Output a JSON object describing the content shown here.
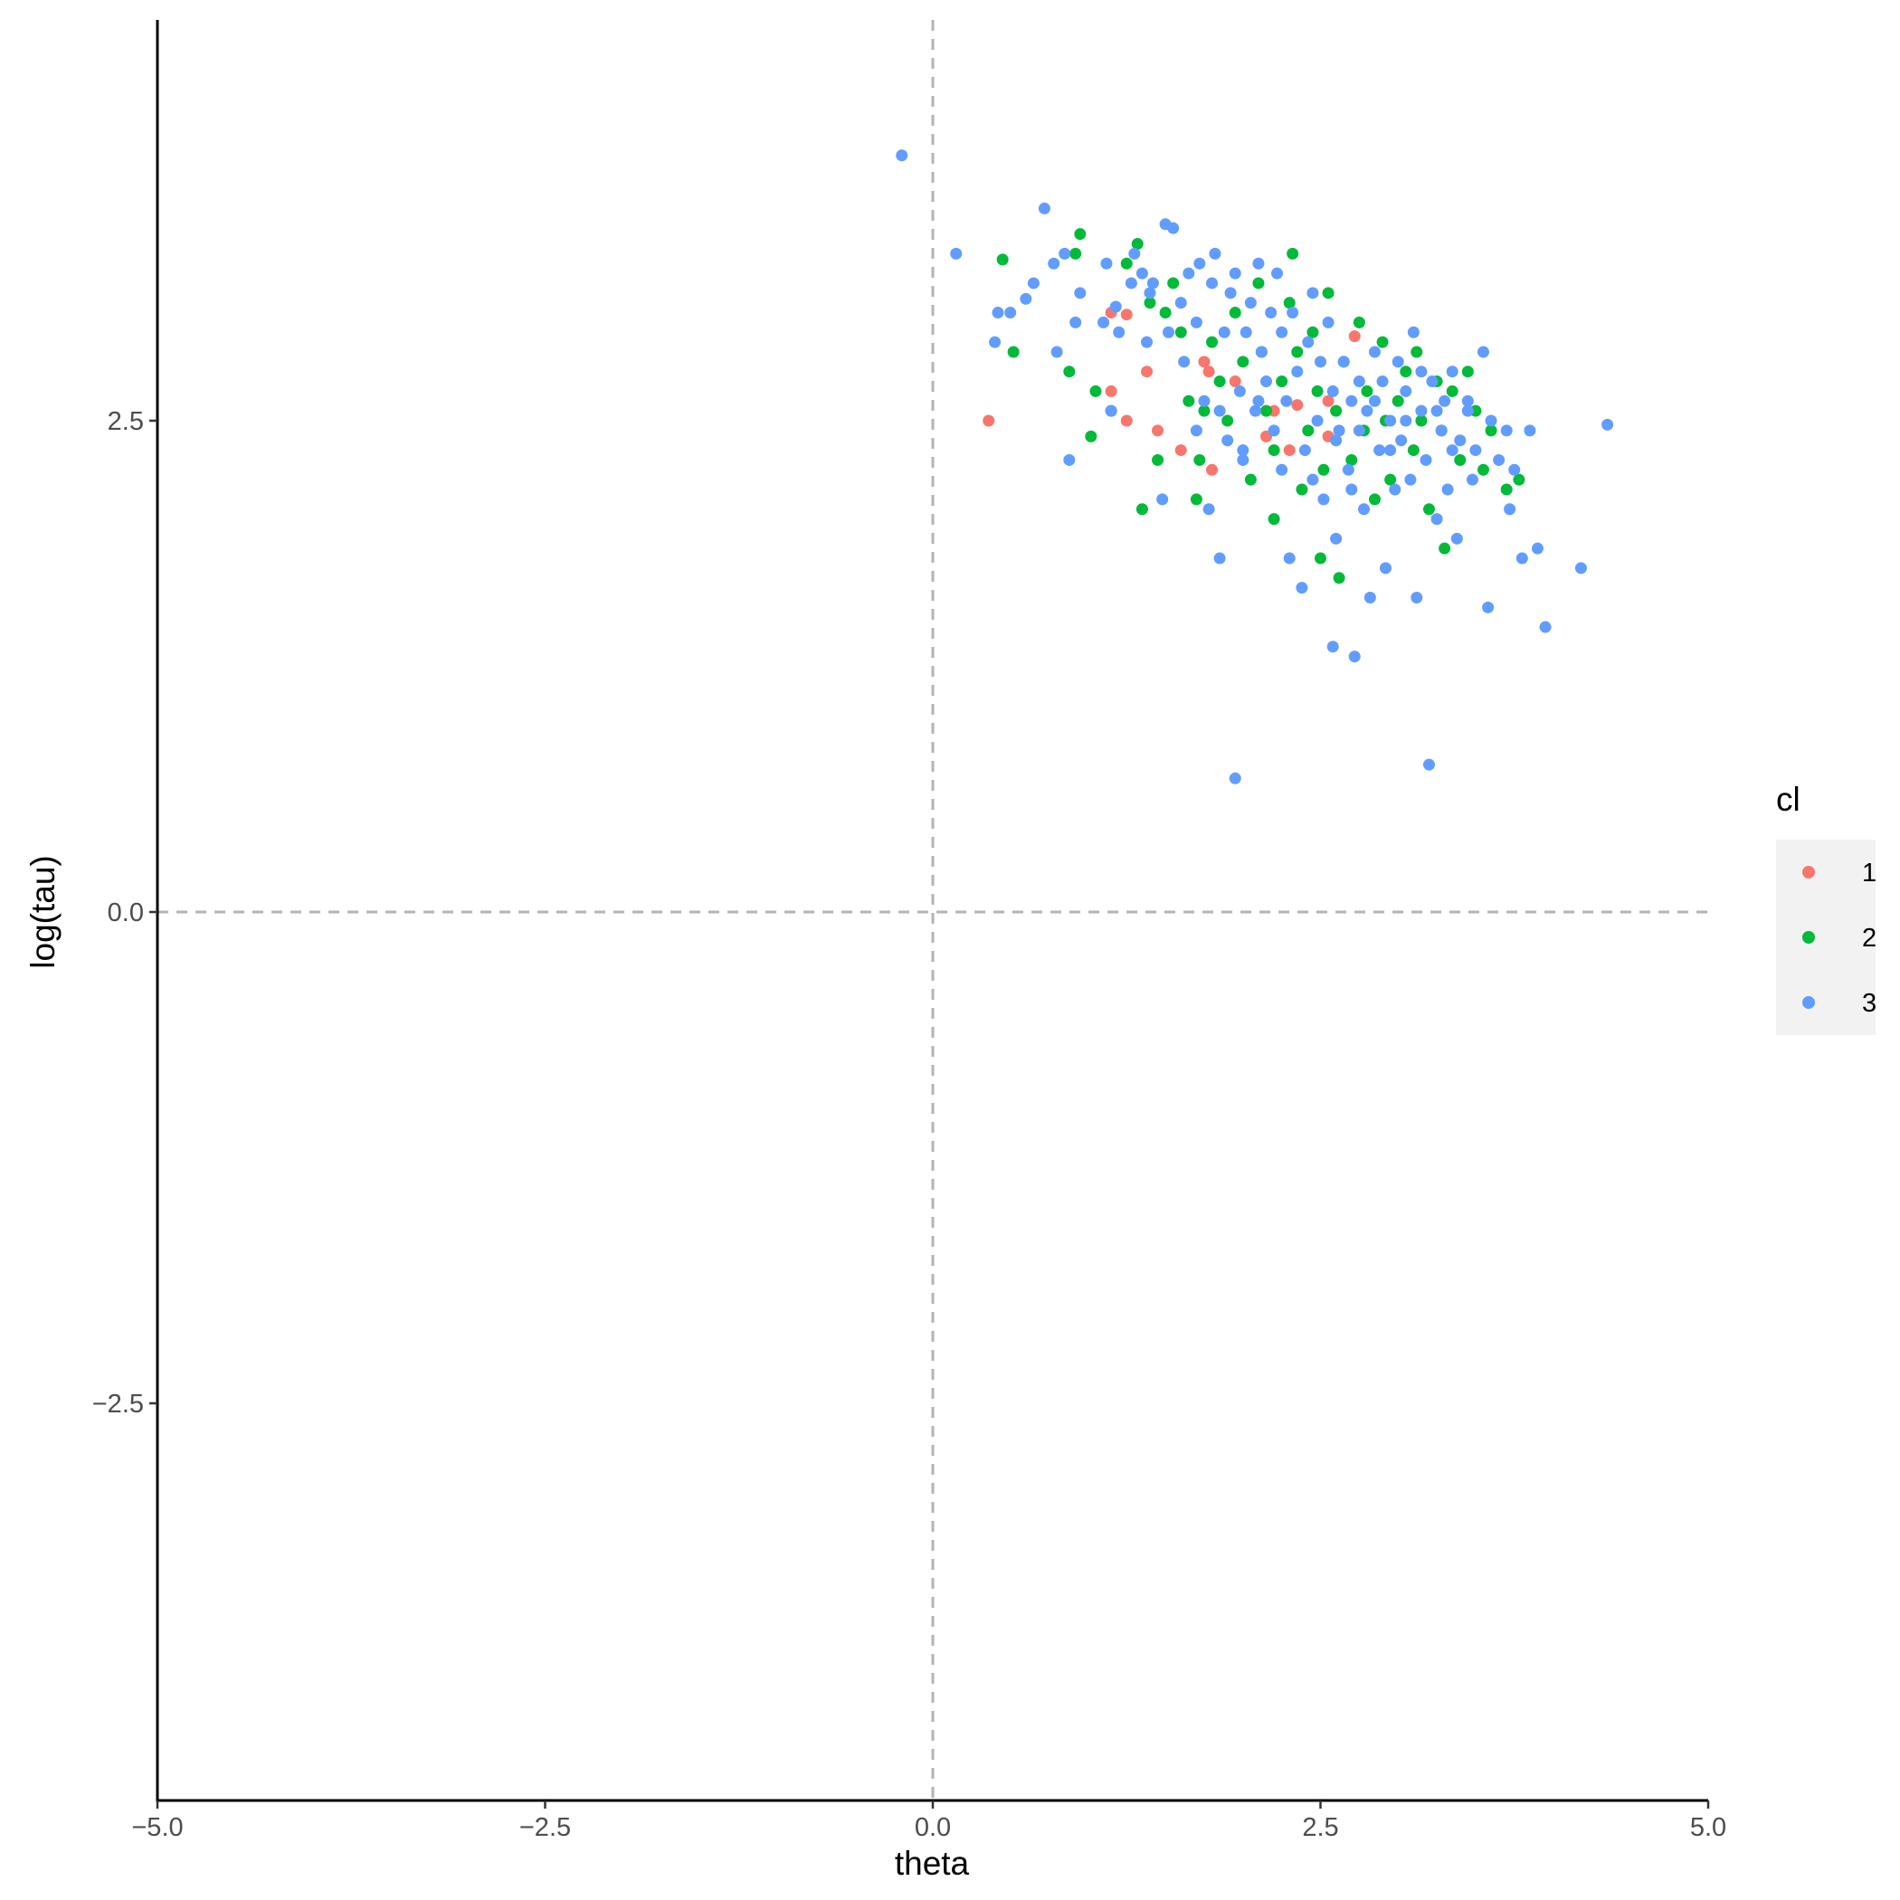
{
  "chart_data": {
    "type": "scatter",
    "title": "",
    "xlabel": "theta",
    "ylabel": "log(tau)",
    "xlim": [
      -5.0,
      5.0
    ],
    "ylim": [
      -4.5,
      4.5
    ],
    "xticks": [
      -5.0,
      -2.5,
      0.0,
      2.5,
      5.0
    ],
    "xtick_labels": [
      "−5.0",
      "−2.5",
      "0.0",
      "2.5",
      "5.0"
    ],
    "yticks": [
      -2.5,
      0.0,
      2.5
    ],
    "ytick_labels": [
      "−2.5",
      "0.0",
      "2.5"
    ],
    "reference_lines": {
      "x": 0,
      "y": 0,
      "style": "dashed",
      "color": "#b3b3b3"
    },
    "grid": false,
    "legend": {
      "title": "cl",
      "position": "right"
    },
    "series": [
      {
        "name": "1",
        "color": "#F8766D",
        "points": [
          [
            0.36,
            2.5
          ],
          [
            1.15,
            3.05
          ],
          [
            1.25,
            3.04
          ],
          [
            1.15,
            2.65
          ],
          [
            1.25,
            2.5
          ],
          [
            1.38,
            2.75
          ],
          [
            1.45,
            2.45
          ],
          [
            1.6,
            2.35
          ],
          [
            1.75,
            2.8
          ],
          [
            1.8,
            2.25
          ],
          [
            1.95,
            2.7
          ],
          [
            2.15,
            2.42
          ],
          [
            2.2,
            2.55
          ],
          [
            2.3,
            2.35
          ],
          [
            2.35,
            2.58
          ],
          [
            2.55,
            2.6
          ],
          [
            2.55,
            2.42
          ],
          [
            2.72,
            2.93
          ],
          [
            1.78,
            2.75
          ]
        ]
      },
      {
        "name": "2",
        "color": "#00BA38",
        "points": [
          [
            0.45,
            3.32
          ],
          [
            0.52,
            2.85
          ],
          [
            0.88,
            2.75
          ],
          [
            0.92,
            3.35
          ],
          [
            0.95,
            3.45
          ],
          [
            1.02,
            2.42
          ],
          [
            1.05,
            2.65
          ],
          [
            1.15,
            2.55
          ],
          [
            1.25,
            3.3
          ],
          [
            1.32,
            3.4
          ],
          [
            1.35,
            2.05
          ],
          [
            1.4,
            3.1
          ],
          [
            1.45,
            2.3
          ],
          [
            1.5,
            3.05
          ],
          [
            1.55,
            3.2
          ],
          [
            1.6,
            2.95
          ],
          [
            1.65,
            2.6
          ],
          [
            1.7,
            2.1
          ],
          [
            1.72,
            2.3
          ],
          [
            1.75,
            2.55
          ],
          [
            1.8,
            2.9
          ],
          [
            1.85,
            2.7
          ],
          [
            1.9,
            2.5
          ],
          [
            1.95,
            3.05
          ],
          [
            2.0,
            2.8
          ],
          [
            2.05,
            2.2
          ],
          [
            2.1,
            3.2
          ],
          [
            2.12,
            2.85
          ],
          [
            2.15,
            2.55
          ],
          [
            2.2,
            2.35
          ],
          [
            2.25,
            2.7
          ],
          [
            2.3,
            3.1
          ],
          [
            2.32,
            3.35
          ],
          [
            2.35,
            2.85
          ],
          [
            2.38,
            2.15
          ],
          [
            2.42,
            2.45
          ],
          [
            2.45,
            2.95
          ],
          [
            2.48,
            2.65
          ],
          [
            2.5,
            1.8
          ],
          [
            2.52,
            2.25
          ],
          [
            2.55,
            3.15
          ],
          [
            2.6,
            2.55
          ],
          [
            2.62,
            1.7
          ],
          [
            2.65,
            2.8
          ],
          [
            2.7,
            2.3
          ],
          [
            2.75,
            3.0
          ],
          [
            2.78,
            2.45
          ],
          [
            2.8,
            2.65
          ],
          [
            2.85,
            2.1
          ],
          [
            2.9,
            2.9
          ],
          [
            2.92,
            2.5
          ],
          [
            2.95,
            2.2
          ],
          [
            3.0,
            2.6
          ],
          [
            3.05,
            2.75
          ],
          [
            3.1,
            2.35
          ],
          [
            3.12,
            2.85
          ],
          [
            3.15,
            2.5
          ],
          [
            3.2,
            2.05
          ],
          [
            3.25,
            2.7
          ],
          [
            3.28,
            2.45
          ],
          [
            3.3,
            1.85
          ],
          [
            3.35,
            2.65
          ],
          [
            3.4,
            2.3
          ],
          [
            3.45,
            2.75
          ],
          [
            3.5,
            2.55
          ],
          [
            3.55,
            2.25
          ],
          [
            3.6,
            2.45
          ],
          [
            3.7,
            2.15
          ],
          [
            3.78,
            2.2
          ],
          [
            2.2,
            2.0
          ]
        ]
      },
      {
        "name": "3",
        "color": "#619CFF",
        "points": [
          [
            -0.2,
            3.85
          ],
          [
            0.15,
            3.35
          ],
          [
            0.4,
            2.9
          ],
          [
            0.42,
            3.05
          ],
          [
            0.5,
            3.05
          ],
          [
            0.6,
            3.12
          ],
          [
            0.65,
            3.2
          ],
          [
            0.72,
            3.58
          ],
          [
            0.78,
            3.3
          ],
          [
            0.8,
            2.85
          ],
          [
            0.85,
            3.35
          ],
          [
            0.88,
            2.3
          ],
          [
            0.92,
            3.0
          ],
          [
            0.95,
            3.15
          ],
          [
            1.1,
            3.0
          ],
          [
            1.12,
            3.3
          ],
          [
            1.15,
            2.55
          ],
          [
            1.18,
            3.08
          ],
          [
            1.2,
            2.95
          ],
          [
            1.28,
            3.2
          ],
          [
            1.3,
            3.35
          ],
          [
            1.35,
            3.25
          ],
          [
            1.38,
            2.9
          ],
          [
            1.4,
            3.15
          ],
          [
            1.42,
            3.2
          ],
          [
            1.48,
            2.1
          ],
          [
            1.5,
            3.5
          ],
          [
            1.52,
            2.95
          ],
          [
            1.55,
            3.48
          ],
          [
            1.6,
            3.1
          ],
          [
            1.62,
            2.8
          ],
          [
            1.65,
            3.25
          ],
          [
            1.7,
            3.0
          ],
          [
            1.72,
            3.3
          ],
          [
            1.75,
            2.6
          ],
          [
            1.78,
            2.05
          ],
          [
            1.8,
            3.2
          ],
          [
            1.82,
            3.35
          ],
          [
            1.85,
            1.8
          ],
          [
            1.88,
            2.95
          ],
          [
            1.9,
            2.4
          ],
          [
            1.92,
            3.15
          ],
          [
            1.95,
            3.25
          ],
          [
            1.98,
            2.65
          ],
          [
            2.0,
            2.3
          ],
          [
            2.02,
            2.95
          ],
          [
            2.05,
            3.1
          ],
          [
            2.08,
            2.55
          ],
          [
            2.1,
            3.3
          ],
          [
            2.12,
            2.85
          ],
          [
            2.15,
            2.7
          ],
          [
            2.18,
            3.05
          ],
          [
            2.2,
            2.45
          ],
          [
            2.22,
            3.25
          ],
          [
            2.25,
            2.95
          ],
          [
            2.28,
            2.6
          ],
          [
            2.3,
            1.8
          ],
          [
            2.32,
            3.05
          ],
          [
            2.35,
            2.75
          ],
          [
            2.38,
            1.65
          ],
          [
            2.4,
            2.35
          ],
          [
            2.42,
            2.9
          ],
          [
            2.45,
            3.15
          ],
          [
            2.48,
            2.5
          ],
          [
            2.5,
            2.8
          ],
          [
            2.52,
            2.1
          ],
          [
            2.55,
            3.0
          ],
          [
            2.58,
            2.65
          ],
          [
            2.6,
            1.9
          ],
          [
            2.62,
            2.45
          ],
          [
            2.65,
            2.8
          ],
          [
            2.68,
            2.25
          ],
          [
            2.7,
            2.6
          ],
          [
            2.72,
            1.3
          ],
          [
            2.75,
            2.7
          ],
          [
            2.78,
            2.05
          ],
          [
            2.8,
            2.55
          ],
          [
            2.82,
            1.6
          ],
          [
            2.85,
            2.85
          ],
          [
            2.88,
            2.35
          ],
          [
            2.9,
            2.7
          ],
          [
            2.92,
            1.75
          ],
          [
            2.95,
            2.5
          ],
          [
            2.98,
            2.15
          ],
          [
            3.0,
            2.8
          ],
          [
            3.02,
            2.4
          ],
          [
            3.05,
            2.65
          ],
          [
            3.08,
            2.2
          ],
          [
            3.1,
            2.95
          ],
          [
            3.12,
            1.6
          ],
          [
            3.15,
            2.55
          ],
          [
            3.18,
            2.3
          ],
          [
            3.2,
            0.75
          ],
          [
            3.22,
            2.7
          ],
          [
            3.25,
            2.0
          ],
          [
            3.28,
            2.45
          ],
          [
            3.3,
            2.6
          ],
          [
            3.32,
            2.15
          ],
          [
            3.35,
            2.75
          ],
          [
            3.38,
            1.9
          ],
          [
            3.4,
            2.4
          ],
          [
            3.45,
            2.55
          ],
          [
            3.48,
            2.2
          ],
          [
            3.5,
            2.35
          ],
          [
            3.55,
            2.85
          ],
          [
            3.58,
            1.55
          ],
          [
            3.6,
            2.5
          ],
          [
            3.65,
            2.3
          ],
          [
            3.7,
            2.45
          ],
          [
            3.72,
            2.05
          ],
          [
            3.75,
            2.25
          ],
          [
            3.8,
            1.8
          ],
          [
            3.85,
            2.45
          ],
          [
            3.9,
            1.85
          ],
          [
            3.95,
            1.45
          ],
          [
            4.18,
            1.75
          ],
          [
            4.35,
            2.48
          ],
          [
            1.95,
            0.68
          ],
          [
            2.58,
            1.35
          ],
          [
            2.0,
            2.35
          ],
          [
            2.25,
            2.25
          ],
          [
            2.45,
            2.2
          ],
          [
            2.6,
            2.4
          ],
          [
            2.7,
            2.15
          ],
          [
            2.75,
            2.45
          ],
          [
            2.85,
            2.6
          ],
          [
            2.95,
            2.35
          ],
          [
            3.05,
            2.5
          ],
          [
            3.15,
            2.75
          ],
          [
            3.25,
            2.55
          ],
          [
            3.35,
            2.35
          ],
          [
            3.45,
            2.6
          ],
          [
            1.7,
            2.45
          ],
          [
            1.85,
            2.55
          ],
          [
            2.1,
            2.6
          ]
        ]
      }
    ]
  }
}
